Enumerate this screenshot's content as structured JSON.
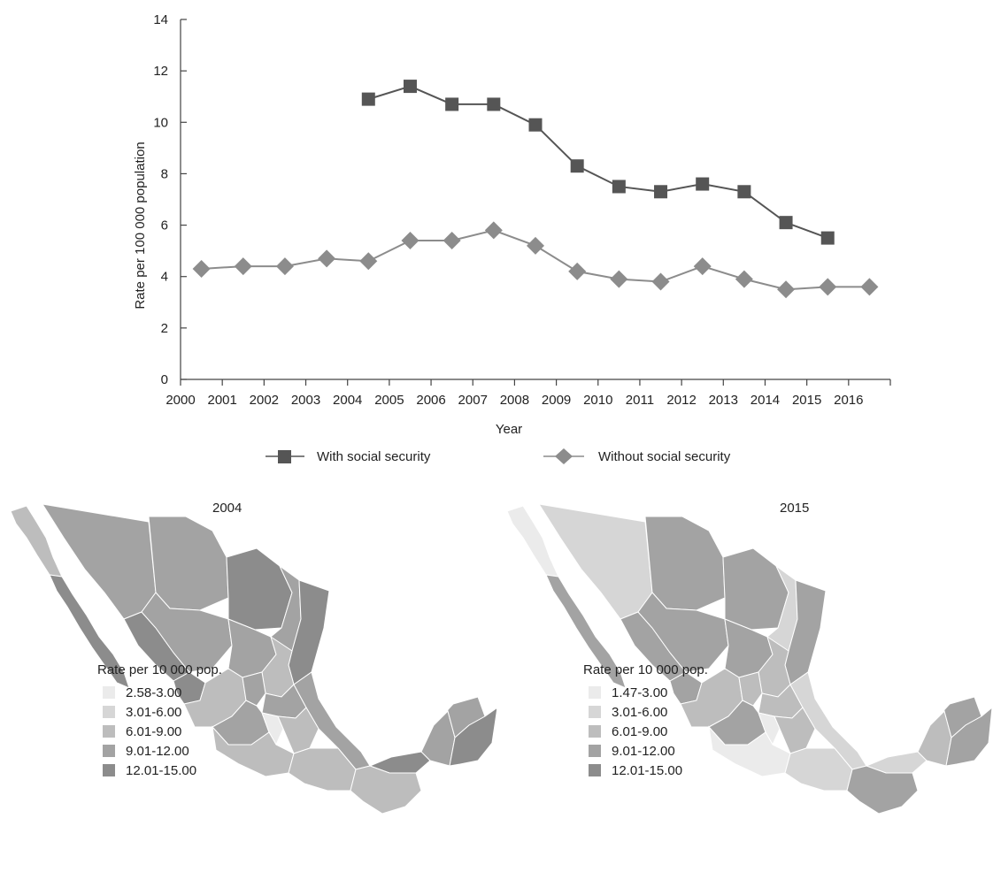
{
  "chart_data": [
    {
      "type": "line",
      "title": "",
      "xlabel": "Year",
      "ylabel": "Rate per 100 000 population",
      "ylim": [
        0,
        14
      ],
      "yticks": [
        "0",
        "2",
        "4",
        "6",
        "8",
        "10",
        "12",
        "14"
      ],
      "categories": [
        "2000",
        "2001",
        "2002",
        "2003",
        "2004",
        "2005",
        "2006",
        "2007",
        "2008",
        "2009",
        "2010",
        "2011",
        "2012",
        "2013",
        "2014",
        "2015",
        "2016"
      ],
      "legend": "bottom-center",
      "grid": false,
      "series": [
        {
          "name": "With social security",
          "marker": "square",
          "color": "#555555",
          "values": [
            null,
            null,
            null,
            null,
            10.9,
            11.4,
            10.7,
            10.7,
            9.9,
            8.3,
            7.5,
            7.3,
            7.6,
            7.3,
            6.1,
            5.5,
            null
          ]
        },
        {
          "name": "Without social security",
          "marker": "diamond",
          "color": "#8c8c8c",
          "values": [
            4.3,
            4.4,
            4.4,
            4.7,
            4.6,
            5.4,
            5.4,
            5.8,
            5.2,
            4.2,
            3.9,
            3.8,
            4.4,
            3.9,
            3.5,
            3.6,
            3.6
          ]
        }
      ]
    },
    {
      "type": "map",
      "title": "2004",
      "legend_title": "Rate per 10 000 pop.",
      "legend": [
        {
          "label": "2.58-3.00",
          "color": "#ebebeb"
        },
        {
          "label": "3.01-6.00",
          "color": "#d6d6d6"
        },
        {
          "label": "6.01-9.00",
          "color": "#bdbdbd"
        },
        {
          "label": "9.01-12.00",
          "color": "#a3a3a3"
        },
        {
          "label": "12.01-15.00",
          "color": "#8c8c8c"
        }
      ]
    },
    {
      "type": "map",
      "title": "2015",
      "legend_title": "Rate per 10 000 pop.",
      "legend": [
        {
          "label": "1.47-3.00",
          "color": "#ebebeb"
        },
        {
          "label": "3.01-6.00",
          "color": "#d6d6d6"
        },
        {
          "label": "6.01-9.00",
          "color": "#bdbdbd"
        },
        {
          "label": "9.01-12.00",
          "color": "#a3a3a3"
        },
        {
          "label": "12.01-15.00",
          "color": "#8c8c8c"
        }
      ]
    }
  ]
}
